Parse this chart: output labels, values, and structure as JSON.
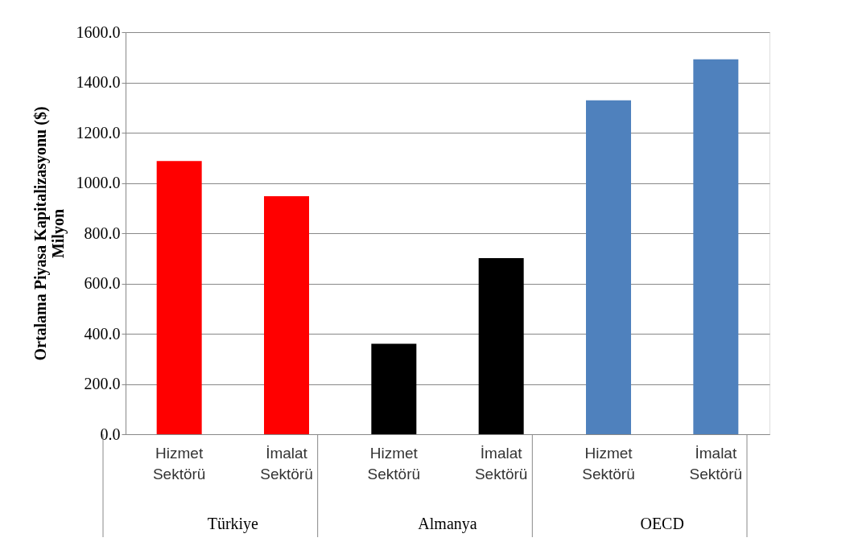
{
  "chart_data": {
    "type": "bar",
    "ylabel": [
      "Ortalama Piyasa Kapitalizasyonu ($)",
      "Milyon"
    ],
    "categories": [
      "Hizmet Sektörü",
      "İmalat Sektörü",
      "Hizmet Sektörü",
      "İmalat Sektörü",
      "Hizmet Sektörü",
      "İmalat Sektörü"
    ],
    "values": [
      1087,
      947,
      360,
      701,
      1329,
      1492
    ],
    "colors": [
      "#ff0000",
      "#ff0000",
      "#000000",
      "#000000",
      "#4f81bd",
      "#4f81bd"
    ],
    "annotations": [
      "Türkiye",
      "Almanya",
      "OECD"
    ],
    "ylim": [
      0,
      1600
    ],
    "yticks": [
      {
        "value": 0,
        "label": "0.0"
      },
      {
        "value": 200,
        "label": "200.0"
      },
      {
        "value": 400,
        "label": "400.0"
      },
      {
        "value": 600,
        "label": "600.0"
      },
      {
        "value": 800,
        "label": "800.0"
      },
      {
        "value": 1000,
        "label": "1000.0"
      },
      {
        "value": 1200,
        "label": "1200.0"
      },
      {
        "value": 1400,
        "label": "1400.0"
      },
      {
        "value": 1600,
        "label": "1600.0"
      }
    ],
    "grid": "y"
  }
}
